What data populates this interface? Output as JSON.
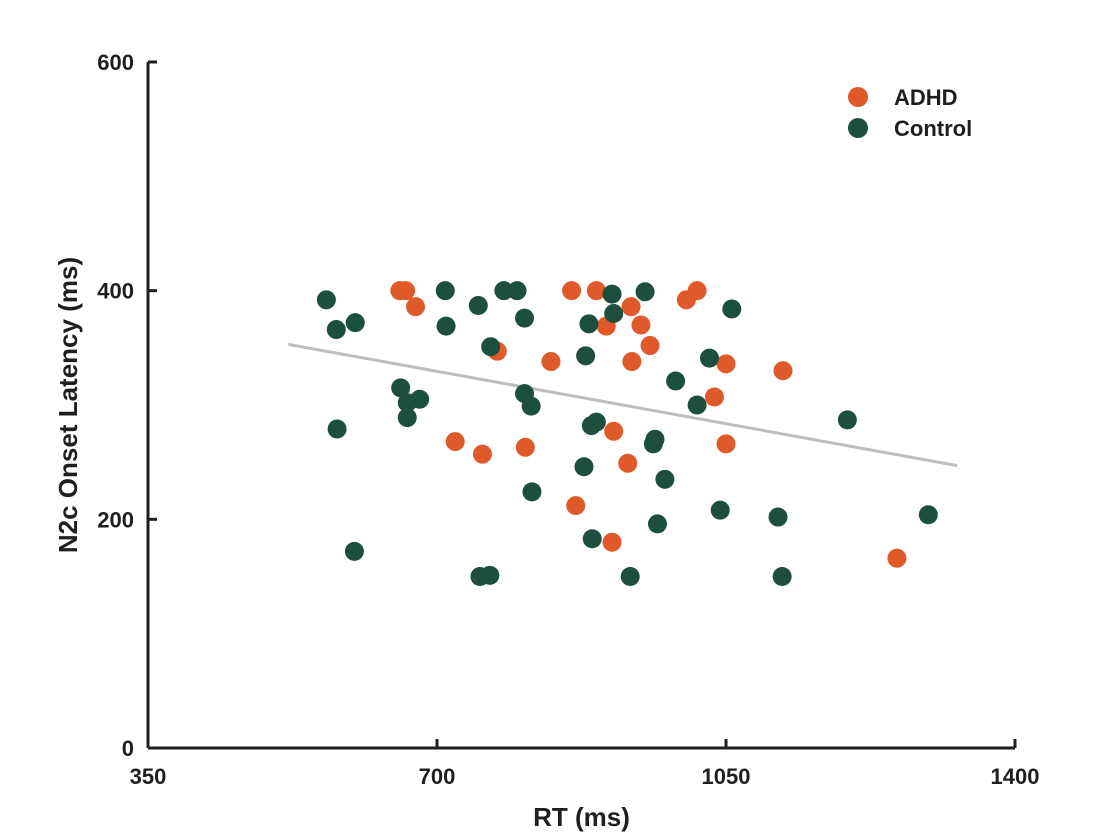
{
  "chart_data": {
    "type": "scatter",
    "xlabel": "RT (ms)",
    "ylabel": "N2c Onset Latency (ms)",
    "xlim": [
      350,
      1400
    ],
    "ylim": [
      0,
      600
    ],
    "xticks": [
      "350",
      "700",
      "1050",
      "1400"
    ],
    "yticks": [
      "0",
      "200",
      "400",
      "600"
    ],
    "legend_position": "top-right",
    "series": [
      {
        "name": "ADHD",
        "color": "#e0592a",
        "points": [
          [
            655,
            400
          ],
          [
            662,
            400
          ],
          [
            674,
            386
          ],
          [
            722,
            268
          ],
          [
            755,
            257
          ],
          [
            773,
            347
          ],
          [
            807,
            263
          ],
          [
            838,
            338
          ],
          [
            863,
            400
          ],
          [
            868,
            212
          ],
          [
            893,
            400
          ],
          [
            905,
            369
          ],
          [
            912,
            180
          ],
          [
            914,
            277
          ],
          [
            931,
            249
          ],
          [
            935,
            386
          ],
          [
            936,
            338
          ],
          [
            947,
            370
          ],
          [
            958,
            352
          ],
          [
            1002,
            392
          ],
          [
            1015,
            400
          ],
          [
            1036,
            307
          ],
          [
            1050,
            336
          ],
          [
            1050,
            266
          ],
          [
            1119,
            330
          ],
          [
            1257,
            166
          ]
        ]
      },
      {
        "name": "Control",
        "color": "#1d4f3e",
        "points": [
          [
            566,
            392
          ],
          [
            578,
            366
          ],
          [
            579,
            279
          ],
          [
            601,
            372
          ],
          [
            600,
            172
          ],
          [
            656,
            315
          ],
          [
            664,
            289
          ],
          [
            664,
            302
          ],
          [
            679,
            305
          ],
          [
            710,
            400
          ],
          [
            711,
            369
          ],
          [
            750,
            387
          ],
          [
            752,
            150
          ],
          [
            764,
            151
          ],
          [
            765,
            351
          ],
          [
            781,
            400
          ],
          [
            797,
            400
          ],
          [
            806,
            376
          ],
          [
            806,
            310
          ],
          [
            814,
            299
          ],
          [
            815,
            224
          ],
          [
            878,
            246
          ],
          [
            880,
            343
          ],
          [
            884,
            371
          ],
          [
            887,
            282
          ],
          [
            888,
            183
          ],
          [
            893,
            285
          ],
          [
            912,
            397
          ],
          [
            914,
            380
          ],
          [
            934,
            150
          ],
          [
            952,
            399
          ],
          [
            962,
            266
          ],
          [
            964,
            270
          ],
          [
            967,
            196
          ],
          [
            976,
            235
          ],
          [
            989,
            321
          ],
          [
            1015,
            300
          ],
          [
            1030,
            341
          ],
          [
            1043,
            208
          ],
          [
            1057,
            384
          ],
          [
            1113,
            202
          ],
          [
            1118,
            150
          ],
          [
            1197,
            287
          ],
          [
            1295,
            204
          ]
        ]
      }
    ],
    "trend_line": {
      "color": "#bdbdbd",
      "x": [
        520,
        1330
      ],
      "y": [
        353,
        247
      ]
    }
  }
}
